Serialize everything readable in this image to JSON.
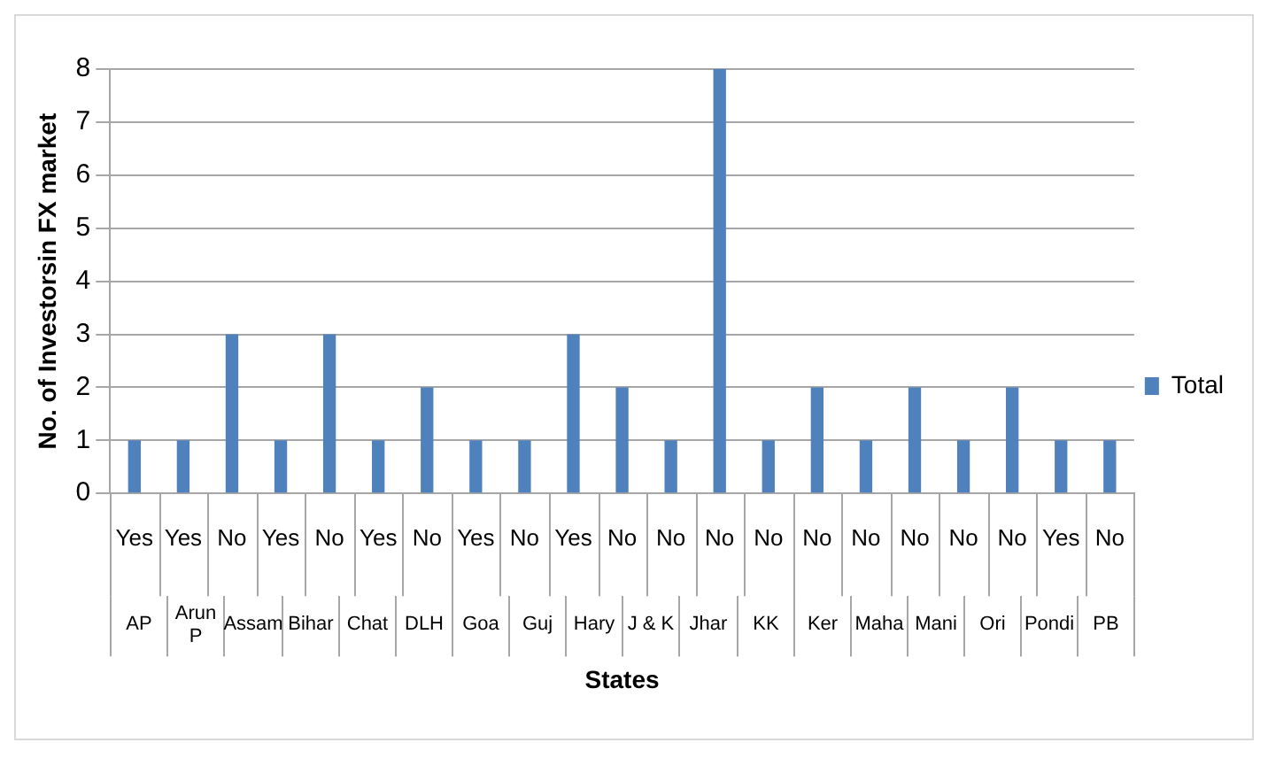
{
  "chart_data": {
    "type": "bar",
    "xlabel": "States",
    "ylabel": "No. of Investorsin FX market",
    "categories": [
      "Yes",
      "Yes",
      "No",
      "Yes",
      "No",
      "Yes",
      "No",
      "Yes",
      "No",
      "Yes",
      "No",
      "No",
      "No",
      "No",
      "No",
      "No",
      "No",
      "No",
      "No",
      "Yes",
      "No"
    ],
    "series": [
      {
        "name": "Total",
        "color": "#4f81bd",
        "values": [
          1,
          1,
          3,
          1,
          3,
          1,
          2,
          1,
          1,
          3,
          2,
          1,
          8,
          1,
          2,
          1,
          2,
          1,
          2,
          1,
          1
        ]
      }
    ],
    "ylim": [
      0,
      8
    ],
    "yticks": [
      0,
      1,
      2,
      3,
      4,
      5,
      6,
      7,
      8
    ],
    "grid": "y",
    "legend": "right",
    "annotations": [
      "AP",
      "Arun P",
      "Assam",
      "Bihar",
      "Chat",
      "DLH",
      "Goa",
      "Guj",
      "Hary",
      "J & K",
      "Jhar",
      "KK",
      "Ker",
      "Maha",
      "Mani",
      "Ori",
      "Pondi",
      "PB"
    ]
  }
}
